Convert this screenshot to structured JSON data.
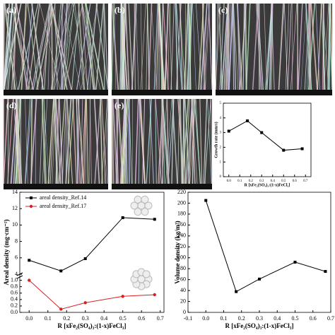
{
  "sem_panels": [
    "(a)",
    "(b)",
    "(c)",
    "(d)",
    "(e)"
  ],
  "chart_data": [
    {
      "type": "line",
      "xlabel": "R [xFe₂(SO₄)₃:(1-x)FeCl₃]",
      "ylabel": "Growth rate (mm/s)",
      "x": [
        0,
        0.17,
        0.3,
        0.5,
        0.67
      ],
      "series": [
        {
          "color": "#000000",
          "values": [
            3.1,
            3.8,
            3.0,
            1.8,
            1.9
          ]
        }
      ],
      "xlim": [
        -0.05,
        0.75
      ],
      "xticks": [
        {
          "value": 0,
          "label": "0.0"
        },
        0.1,
        0.2,
        0.3,
        0.4,
        0.5,
        0.6,
        0.7
      ],
      "ylim": [
        0,
        5
      ],
      "yticks": [
        0,
        1,
        2,
        3,
        4,
        5
      ]
    },
    {
      "type": "line",
      "xlabel": "R [xFe₂(SO₄)₃:(1-x)FeCl₃]",
      "ylabel": "Areal density (mg·cm⁻²)",
      "x": [
        0,
        0.17,
        0.3,
        0.5,
        0.67
      ],
      "series": [
        {
          "name": "areal density_Ref.14",
          "color": "#000000",
          "values": [
            5.7,
            4.4,
            5.9,
            10.9,
            10.7
          ]
        },
        {
          "name": "areal density_Ref.17",
          "color": "#d62020",
          "axis": "y2",
          "values": [
            1.0,
            0.1,
            0.3,
            0.5,
            0.55
          ]
        }
      ],
      "xlim": [
        -0.05,
        0.72
      ],
      "xticks": [
        {
          "value": 0,
          "label": "0.0"
        },
        0.1,
        0.2,
        0.3,
        0.4,
        0.5,
        0.6,
        0.7
      ],
      "ylim": [
        4,
        14
      ],
      "yticks": [
        4,
        6,
        8,
        10,
        12,
        14
      ],
      "y2lim": [
        0,
        1.1
      ],
      "y2ticks": [
        {
          "value": 0,
          "label": "0.0"
        },
        0.2,
        0.4,
        0.6,
        0.8,
        {
          "value": 1,
          "label": "1.0"
        }
      ]
    },
    {
      "type": "line",
      "xlabel": "R [xFe₂(SO₄)₃:(1-x)FeCl₃]",
      "ylabel": "Volume density (kg/m³)",
      "x": [
        0,
        0.17,
        0.3,
        0.5,
        0.67
      ],
      "series": [
        {
          "color": "#000000",
          "values": [
            205,
            38,
            61,
            92,
            75
          ]
        }
      ],
      "xlim": [
        -0.1,
        0.7
      ],
      "xticks": [
        -0.1,
        {
          "value": 0,
          "label": "0.0"
        },
        0.1,
        0.2,
        0.3,
        0.4,
        0.5,
        0.6,
        0.7
      ],
      "ylim": [
        0,
        220
      ],
      "yticks": [
        0,
        20,
        40,
        60,
        80,
        100,
        120,
        140,
        160,
        180,
        200,
        220
      ]
    }
  ]
}
